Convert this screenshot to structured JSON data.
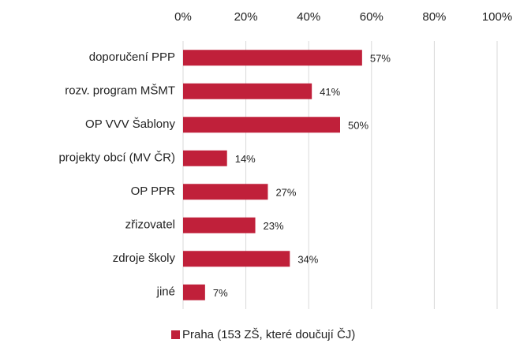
{
  "chart_data": {
    "type": "barh",
    "categories": [
      "doporučení PPP",
      "rozv. program MŠMT",
      "OP VVV Šablony",
      "projekty obcí (MV ČR)",
      "OP PPR",
      "zřizovatel",
      "zdroje školy",
      "jiné"
    ],
    "series": [
      {
        "name": "Praha (153 ZŠ, které doučují ČJ)",
        "color": "#c0203a",
        "values": [
          57,
          41,
          50,
          14,
          27,
          23,
          34,
          7
        ],
        "value_labels": [
          "57%",
          "41%",
          "50%",
          "14%",
          "27%",
          "23%",
          "34%",
          "7%"
        ]
      }
    ],
    "xlim": [
      0,
      100
    ],
    "xticks": [
      {
        "value": 0,
        "label": "0%"
      },
      {
        "value": 20,
        "label": "20%"
      },
      {
        "value": 40,
        "label": "40%"
      },
      {
        "value": 60,
        "label": "60%"
      },
      {
        "value": 80,
        "label": "80%"
      },
      {
        "value": 100,
        "label": "100%"
      }
    ],
    "grid": true,
    "legend": "bottom"
  }
}
